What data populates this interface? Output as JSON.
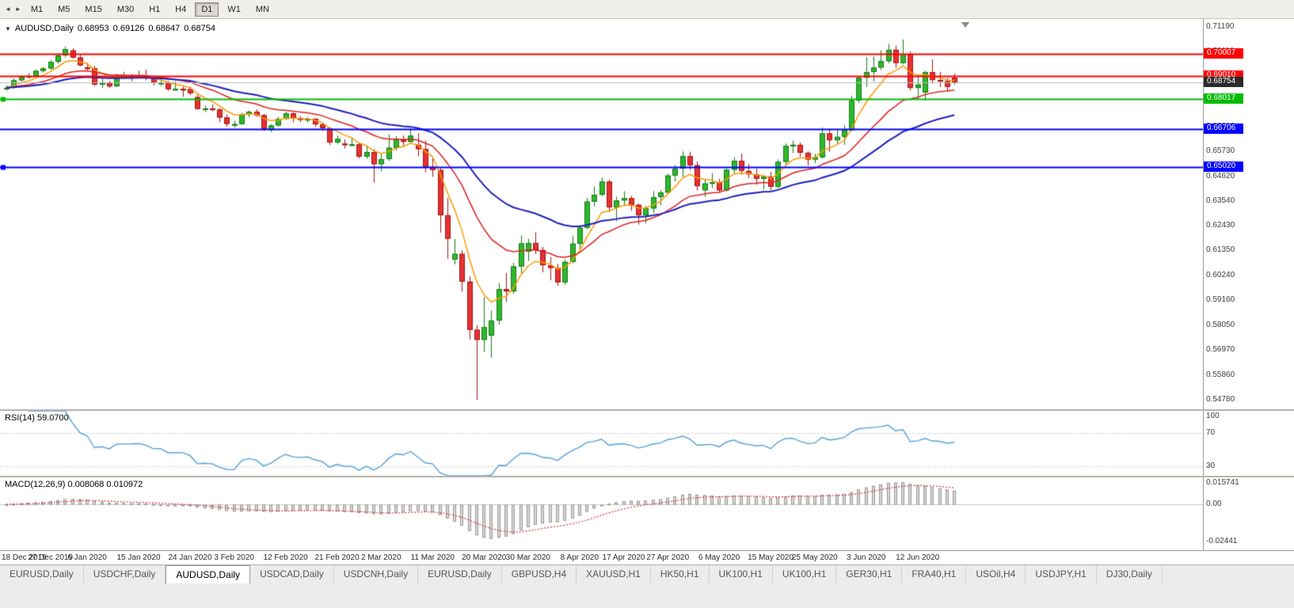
{
  "toolbar": {
    "nav_icons": [
      {
        "glyph": "◄",
        "name": "scroll-left-icon"
      },
      {
        "glyph": "►",
        "name": "scroll-right-icon"
      }
    ],
    "timeframes": [
      {
        "label": "M1",
        "active": false
      },
      {
        "label": "M5",
        "active": false
      },
      {
        "label": "M15",
        "active": false
      },
      {
        "label": "M30",
        "active": false
      },
      {
        "label": "H1",
        "active": false
      },
      {
        "label": "H4",
        "active": false
      },
      {
        "label": "D1",
        "active": true
      },
      {
        "label": "W1",
        "active": false
      },
      {
        "label": "MN",
        "active": false
      }
    ]
  },
  "chart": {
    "menu_icon_glyph": "▼",
    "symbol": "AUDUSD,Daily",
    "ohlc": {
      "open": "0.68953",
      "high": "0.69126",
      "low": "0.68647",
      "close": "0.68754"
    },
    "y_axis": {
      "ticks": [
        "0.71190",
        "0.70110",
        "0.69000",
        "0.67920",
        "0.66810",
        "0.65730",
        "0.64620",
        "0.63540",
        "0.62430",
        "0.61350",
        "0.60240",
        "0.59160",
        "0.58050",
        "0.56970",
        "0.55860",
        "0.54780"
      ]
    },
    "hlines": [
      {
        "price": 0.70007,
        "label": "0.70007",
        "color": "#ff0000",
        "width": 2,
        "handle": false
      },
      {
        "price": 0.6901,
        "label": "0.69010",
        "color": "#ff0000",
        "width": 2,
        "handle": false
      },
      {
        "price": 0.68017,
        "label": "0.68017",
        "color": "#00bb00",
        "width": 2,
        "handle": true
      },
      {
        "price": 0.66706,
        "label": "0.66706",
        "color": "#0000ff",
        "width": 2,
        "handle": false
      },
      {
        "price": 0.6502,
        "label": "0.65020",
        "color": "#0000ff",
        "width": 2,
        "handle": true
      }
    ],
    "current_price": {
      "price": 0.68754,
      "label": "0.68754",
      "color": "#2b2b2b"
    }
  },
  "indicators": {
    "rsi": {
      "label": "RSI(14) 59.0700",
      "period": 14,
      "levels": [
        70,
        30
      ],
      "display_range": [
        18,
        97
      ],
      "axis_labels": [
        {
          "text": "100",
          "pos": "top"
        },
        {
          "text": "70",
          "value": 70
        },
        {
          "text": "30",
          "value": 30
        }
      ]
    },
    "macd": {
      "label": "MACD(12,26,9) 0.008068 0.010972",
      "fast": 12,
      "slow": 26,
      "signal": 9,
      "display_range": [
        -0.0304,
        0.0178
      ],
      "axis_labels": [
        {
          "text": "0.015741",
          "value": 0.015741
        },
        {
          "text": "0.00",
          "value": 0
        },
        {
          "text": "-0.02441",
          "value": -0.02441
        }
      ]
    }
  },
  "x_axis": {
    "labels": [
      {
        "text": "18 Dec 2019",
        "bar": 0
      },
      {
        "text": "27 Dec 2019",
        "bar": 6
      },
      {
        "text": "6 Jan 2020",
        "bar": 11
      },
      {
        "text": "15 Jan 2020",
        "bar": 18
      },
      {
        "text": "24 Jan 2020",
        "bar": 25
      },
      {
        "text": "3 Feb 2020",
        "bar": 31
      },
      {
        "text": "12 Feb 2020",
        "bar": 38
      },
      {
        "text": "21 Feb 2020",
        "bar": 45
      },
      {
        "text": "2 Mar 2020",
        "bar": 51
      },
      {
        "text": "11 Mar 2020",
        "bar": 58
      },
      {
        "text": "20 Mar 2020",
        "bar": 65
      },
      {
        "text": "30 Mar 2020",
        "bar": 71
      },
      {
        "text": "8 Apr 2020",
        "bar": 78
      },
      {
        "text": "17 Apr 2020",
        "bar": 84
      },
      {
        "text": "27 Apr 2020",
        "bar": 90
      },
      {
        "text": "6 May 2020",
        "bar": 97
      },
      {
        "text": "15 May 2020",
        "bar": 104
      },
      {
        "text": "25 May 2020",
        "bar": 110
      },
      {
        "text": "3 Jun 2020",
        "bar": 117
      },
      {
        "text": "12 Jun 2020",
        "bar": 124
      }
    ]
  },
  "tabs": [
    {
      "label": "EURUSD,Daily",
      "active": false
    },
    {
      "label": "USDCHF,Daily",
      "active": false
    },
    {
      "label": "AUDUSD,Daily",
      "active": true
    },
    {
      "label": "USDCAD,Daily",
      "active": false
    },
    {
      "label": "USDCNH,Daily",
      "active": false
    },
    {
      "label": "EURUSD,Daily",
      "active": false
    },
    {
      "label": "GBPUSD,H4",
      "active": false
    },
    {
      "label": "XAUUSD,H1",
      "active": false
    },
    {
      "label": "HK50,H1",
      "active": false
    },
    {
      "label": "UK100,H1",
      "active": false
    },
    {
      "label": "UK100,H1",
      "active": false
    },
    {
      "label": "GER30,H1",
      "active": false
    },
    {
      "label": "FRA40,H1",
      "active": false
    },
    {
      "label": "USOil,H4",
      "active": false
    },
    {
      "label": "USDJPY,H1",
      "active": false
    },
    {
      "label": "DJ30,Daily",
      "active": false
    }
  ],
  "colors": {
    "bull_fill": "#2eb82e",
    "bull_border": "#157a15",
    "bear_fill": "#e63232",
    "bear_border": "#a31414",
    "rsi": "#53a0d8",
    "macd_fill": "#d9d9d9",
    "macd_stroke": "#979797",
    "macd_signal": "#e03030"
  },
  "chart_data": {
    "type": "candlestick",
    "symbol": "AUDUSD",
    "timeframe": "Daily",
    "ylim": [
      0.54364,
      0.71534
    ],
    "moving_averages": [
      {
        "period": 6,
        "color": "#ff9900",
        "width": 1.5
      },
      {
        "period": 17,
        "color": "#e02020",
        "width": 1.5
      },
      {
        "period": 34,
        "color": "#1f1fbf",
        "width": 2
      }
    ],
    "candles": [
      [
        0.6849,
        0.6861,
        0.6838,
        0.6851
      ],
      [
        0.6851,
        0.6892,
        0.6847,
        0.6884
      ],
      [
        0.6884,
        0.6906,
        0.6877,
        0.69
      ],
      [
        0.69,
        0.6916,
        0.689,
        0.6903
      ],
      [
        0.6903,
        0.6931,
        0.6898,
        0.6925
      ],
      [
        0.6925,
        0.6941,
        0.6918,
        0.6936
      ],
      [
        0.6936,
        0.6973,
        0.693,
        0.6965
      ],
      [
        0.6965,
        0.7001,
        0.6958,
        0.6993
      ],
      [
        0.6993,
        0.7032,
        0.6985,
        0.7021
      ],
      [
        0.7015,
        0.7024,
        0.6979,
        0.6984
      ],
      [
        0.6984,
        0.6996,
        0.6945,
        0.695
      ],
      [
        0.694,
        0.6961,
        0.6925,
        0.6936
      ],
      [
        0.6936,
        0.6946,
        0.6859,
        0.6865
      ],
      [
        0.6865,
        0.6891,
        0.685,
        0.6874
      ],
      [
        0.6874,
        0.6881,
        0.6849,
        0.6857
      ],
      [
        0.6857,
        0.6911,
        0.6855,
        0.69
      ],
      [
        0.69,
        0.6921,
        0.689,
        0.6901
      ],
      [
        0.6901,
        0.6911,
        0.6879,
        0.6902
      ],
      [
        0.6902,
        0.6926,
        0.6895,
        0.6905
      ],
      [
        0.6905,
        0.6931,
        0.6884,
        0.6895
      ],
      [
        0.6895,
        0.6901,
        0.6861,
        0.6872
      ],
      [
        0.687,
        0.6886,
        0.686,
        0.6873
      ],
      [
        0.6873,
        0.6881,
        0.6838,
        0.6845
      ],
      [
        0.6845,
        0.6879,
        0.684,
        0.6846
      ],
      [
        0.6846,
        0.6856,
        0.6811,
        0.6845
      ],
      [
        0.6845,
        0.6856,
        0.6819,
        0.6827
      ],
      [
        0.681,
        0.6821,
        0.6754,
        0.6758
      ],
      [
        0.6758,
        0.6773,
        0.6743,
        0.676
      ],
      [
        0.676,
        0.6779,
        0.6747,
        0.6755
      ],
      [
        0.6755,
        0.6761,
        0.6699,
        0.672
      ],
      [
        0.672,
        0.6734,
        0.6681,
        0.6692
      ],
      [
        0.6688,
        0.6706,
        0.6677,
        0.6691
      ],
      [
        0.6691,
        0.6741,
        0.6688,
        0.6733
      ],
      [
        0.6733,
        0.6751,
        0.6721,
        0.6745
      ],
      [
        0.6745,
        0.6756,
        0.6724,
        0.673
      ],
      [
        0.673,
        0.6736,
        0.6661,
        0.667
      ],
      [
        0.6665,
        0.6691,
        0.6656,
        0.6685
      ],
      [
        0.6685,
        0.6723,
        0.668,
        0.6714
      ],
      [
        0.6714,
        0.6746,
        0.6709,
        0.6738
      ],
      [
        0.6738,
        0.6743,
        0.6699,
        0.6716
      ],
      [
        0.6716,
        0.6726,
        0.6699,
        0.6711
      ],
      [
        0.6711,
        0.6721,
        0.6697,
        0.6714
      ],
      [
        0.6714,
        0.6717,
        0.6679,
        0.669
      ],
      [
        0.669,
        0.6696,
        0.6661,
        0.6673
      ],
      [
        0.6673,
        0.6678,
        0.6599,
        0.661
      ],
      [
        0.661,
        0.6641,
        0.6604,
        0.6626
      ],
      [
        0.6605,
        0.6623,
        0.6584,
        0.6601
      ],
      [
        0.6601,
        0.6631,
        0.6594,
        0.6602
      ],
      [
        0.6602,
        0.6611,
        0.6541,
        0.6548
      ],
      [
        0.6548,
        0.6596,
        0.6539,
        0.6568
      ],
      [
        0.6568,
        0.6581,
        0.6433,
        0.6515
      ],
      [
        0.6515,
        0.6561,
        0.6484,
        0.6537
      ],
      [
        0.6537,
        0.6646,
        0.6529,
        0.6587
      ],
      [
        0.6587,
        0.6638,
        0.6575,
        0.6623
      ],
      [
        0.6623,
        0.6641,
        0.6597,
        0.6613
      ],
      [
        0.6613,
        0.6673,
        0.6604,
        0.664
      ],
      [
        0.66,
        0.6651,
        0.6549,
        0.6581
      ],
      [
        0.6581,
        0.6619,
        0.6479,
        0.6503
      ],
      [
        0.6503,
        0.6541,
        0.6459,
        0.6489
      ],
      [
        0.6489,
        0.6496,
        0.6214,
        0.629
      ],
      [
        0.629,
        0.6366,
        0.6099,
        0.6187
      ],
      [
        0.6095,
        0.6186,
        0.6074,
        0.612
      ],
      [
        0.612,
        0.6136,
        0.5954,
        0.5998
      ],
      [
        0.5998,
        0.6021,
        0.5744,
        0.5786
      ],
      [
        0.5786,
        0.5806,
        0.5478,
        0.5742
      ],
      [
        0.5742,
        0.5931,
        0.5689,
        0.5798
      ],
      [
        0.576,
        0.5871,
        0.5664,
        0.5827
      ],
      [
        0.5827,
        0.5991,
        0.5809,
        0.5965
      ],
      [
        0.5965,
        0.6036,
        0.5909,
        0.5955
      ],
      [
        0.5955,
        0.6081,
        0.5944,
        0.6065
      ],
      [
        0.6065,
        0.6201,
        0.6034,
        0.6166
      ],
      [
        0.613,
        0.6186,
        0.6089,
        0.6168
      ],
      [
        0.6168,
        0.6216,
        0.6119,
        0.6137
      ],
      [
        0.6137,
        0.6151,
        0.6039,
        0.607
      ],
      [
        0.607,
        0.6106,
        0.6004,
        0.6058
      ],
      [
        0.6058,
        0.6076,
        0.5979,
        0.5995
      ],
      [
        0.5995,
        0.6096,
        0.5984,
        0.6085
      ],
      [
        0.6085,
        0.6201,
        0.6079,
        0.6165
      ],
      [
        0.6165,
        0.6246,
        0.6134,
        0.6235
      ],
      [
        0.6235,
        0.6366,
        0.6229,
        0.635
      ],
      [
        0.635,
        0.6416,
        0.6329,
        0.638
      ],
      [
        0.638,
        0.6456,
        0.6374,
        0.6438
      ],
      [
        0.6438,
        0.6446,
        0.6304,
        0.6325
      ],
      [
        0.6325,
        0.6371,
        0.6264,
        0.6355
      ],
      [
        0.6355,
        0.6396,
        0.6329,
        0.6365
      ],
      [
        0.6365,
        0.6376,
        0.6309,
        0.6336
      ],
      [
        0.6336,
        0.6341,
        0.6249,
        0.629
      ],
      [
        0.629,
        0.6331,
        0.6254,
        0.632
      ],
      [
        0.632,
        0.6396,
        0.6299,
        0.637
      ],
      [
        0.637,
        0.6401,
        0.6334,
        0.639
      ],
      [
        0.639,
        0.6473,
        0.6384,
        0.6465
      ],
      [
        0.6465,
        0.6511,
        0.6439,
        0.6495
      ],
      [
        0.6495,
        0.6571,
        0.6459,
        0.655
      ],
      [
        0.655,
        0.657,
        0.6489,
        0.651
      ],
      [
        0.651,
        0.6526,
        0.6399,
        0.6418
      ],
      [
        0.64,
        0.6446,
        0.6371,
        0.643
      ],
      [
        0.643,
        0.6476,
        0.6409,
        0.6435
      ],
      [
        0.6435,
        0.6451,
        0.6389,
        0.64
      ],
      [
        0.64,
        0.6496,
        0.6394,
        0.649
      ],
      [
        0.649,
        0.6546,
        0.6474,
        0.653
      ],
      [
        0.653,
        0.6561,
        0.6469,
        0.6485
      ],
      [
        0.6485,
        0.6516,
        0.6454,
        0.647
      ],
      [
        0.647,
        0.6496,
        0.6424,
        0.645
      ],
      [
        0.645,
        0.6466,
        0.6404,
        0.646
      ],
      [
        0.646,
        0.6481,
        0.6401,
        0.6415
      ],
      [
        0.6415,
        0.6536,
        0.6409,
        0.6525
      ],
      [
        0.6525,
        0.6606,
        0.6514,
        0.6595
      ],
      [
        0.6595,
        0.6618,
        0.6564,
        0.66
      ],
      [
        0.66,
        0.6611,
        0.6549,
        0.6565
      ],
      [
        0.6565,
        0.6571,
        0.6509,
        0.6535
      ],
      [
        0.6535,
        0.6561,
        0.6519,
        0.6545
      ],
      [
        0.6545,
        0.6676,
        0.6539,
        0.665
      ],
      [
        0.665,
        0.6666,
        0.6569,
        0.662
      ],
      [
        0.662,
        0.6666,
        0.6604,
        0.6635
      ],
      [
        0.6635,
        0.6686,
        0.6599,
        0.6665
      ],
      [
        0.6665,
        0.6816,
        0.6659,
        0.6795
      ],
      [
        0.6795,
        0.6901,
        0.6784,
        0.6895
      ],
      [
        0.6895,
        0.6986,
        0.6854,
        0.692
      ],
      [
        0.692,
        0.6989,
        0.6879,
        0.694
      ],
      [
        0.694,
        0.7016,
        0.6929,
        0.6968
      ],
      [
        0.6968,
        0.7044,
        0.6959,
        0.7018
      ],
      [
        0.7018,
        0.7036,
        0.6939,
        0.696
      ],
      [
        0.696,
        0.7064,
        0.6954,
        0.7
      ],
      [
        0.7,
        0.7011,
        0.6839,
        0.685
      ],
      [
        0.685,
        0.6911,
        0.6799,
        0.6865
      ],
      [
        0.683,
        0.6926,
        0.6794,
        0.692
      ],
      [
        0.692,
        0.6976,
        0.6869,
        0.6885
      ],
      [
        0.6885,
        0.6921,
        0.6854,
        0.688
      ],
      [
        0.688,
        0.6896,
        0.6834,
        0.6855
      ],
      [
        0.68953,
        0.69126,
        0.68647,
        0.68754
      ]
    ]
  }
}
